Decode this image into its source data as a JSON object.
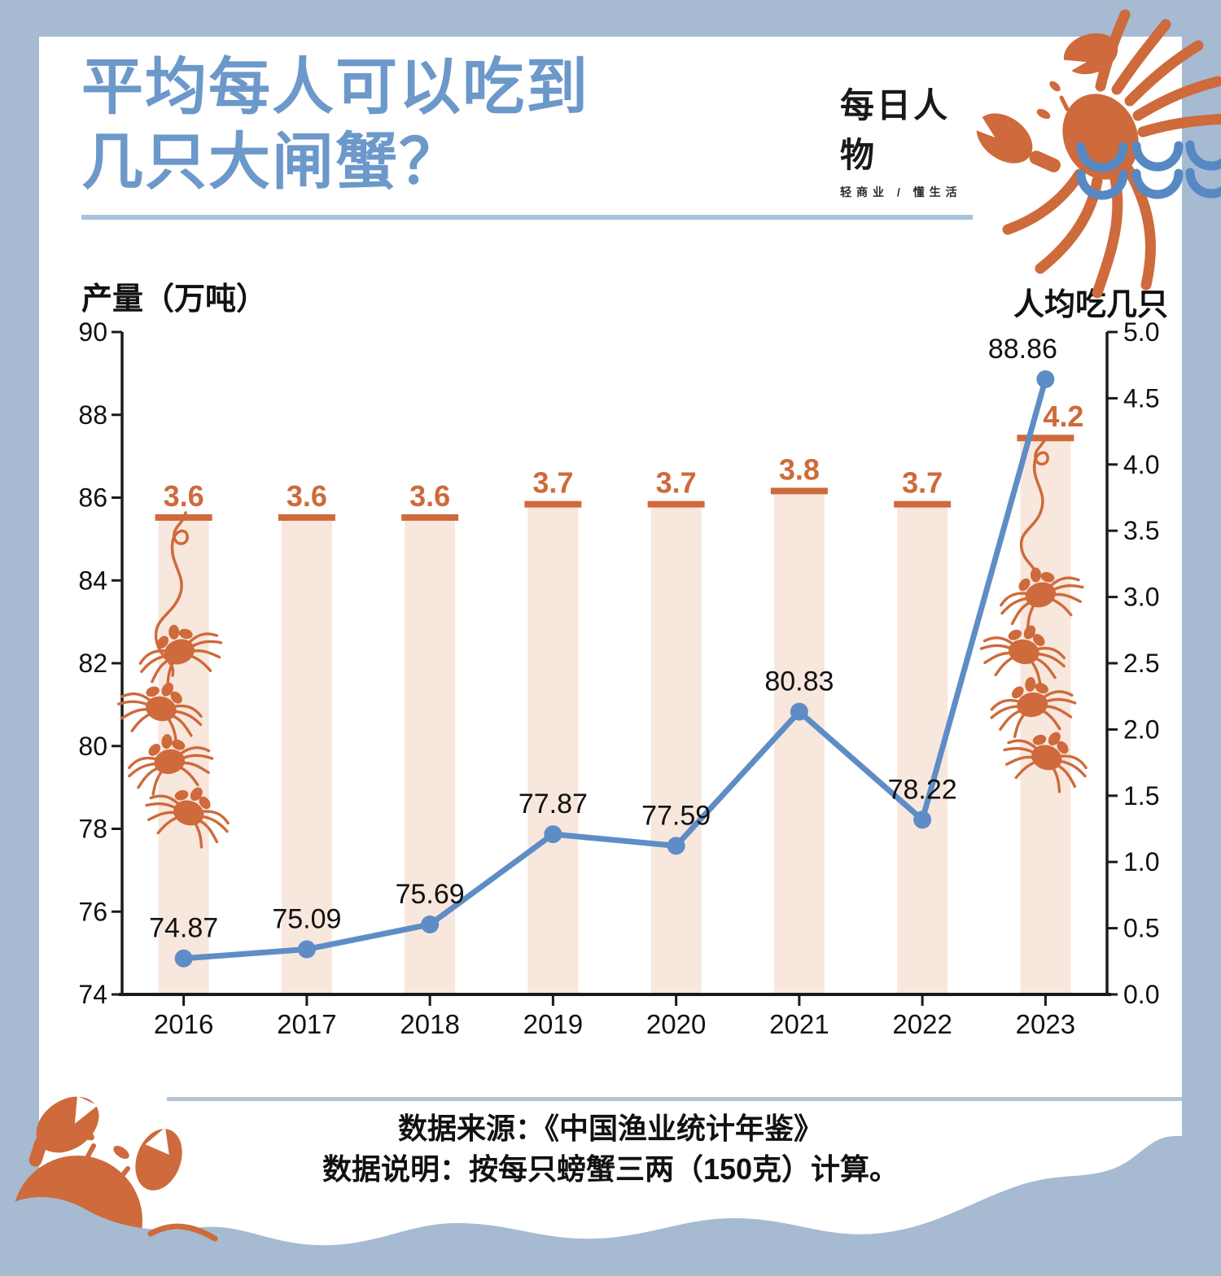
{
  "page": {
    "title_line1": "平均每人可以吃到",
    "title_line2": "几只大闸蟹？",
    "logo": {
      "name": "每日人物",
      "tagline": "轻商业 / 懂生活"
    },
    "left_axis_title": "产量（万吨）",
    "right_axis_title": "人均吃几只",
    "footer_line1": "数据来源：《中国渔业统计年鉴》",
    "footer_line2": "数据说明：按每只螃蟹三两（150克）计算。"
  },
  "colors": {
    "frame_blue": "#a6bad2",
    "title_blue": "#6c98ca",
    "line_blue": "#5e8dc6",
    "wave_arc_blue": "#5688c4",
    "orange": "#ce6a3b",
    "bar_fill": "#f8e7dd",
    "axis_black": "#1a1a1a",
    "label_black": "#111111"
  },
  "chart_data": {
    "type": "bar+line combo",
    "categories": [
      "2016",
      "2017",
      "2018",
      "2019",
      "2020",
      "2021",
      "2022",
      "2023"
    ],
    "series": [
      {
        "name": "产量（万吨）",
        "type": "line",
        "axis": "left",
        "values": [
          74.87,
          75.09,
          75.69,
          77.87,
          77.59,
          80.83,
          78.22,
          88.86
        ]
      },
      {
        "name": "人均吃几只",
        "type": "bar",
        "axis": "right",
        "values": [
          3.6,
          3.6,
          3.6,
          3.7,
          3.7,
          3.8,
          3.7,
          4.2
        ]
      }
    ],
    "left_axis": {
      "title": "产量（万吨）",
      "min": 74,
      "max": 90,
      "ticks": [
        90,
        88,
        86,
        84,
        82,
        80,
        78,
        76,
        74
      ]
    },
    "right_axis": {
      "title": "人均吃几只",
      "min": 0,
      "max": 5,
      "ticks": [
        5.0,
        4.5,
        4.0,
        3.5,
        3.0,
        2.5,
        2.0,
        1.5,
        1.0,
        0.5,
        0.0
      ]
    },
    "legend_position": "none",
    "grid": false
  }
}
